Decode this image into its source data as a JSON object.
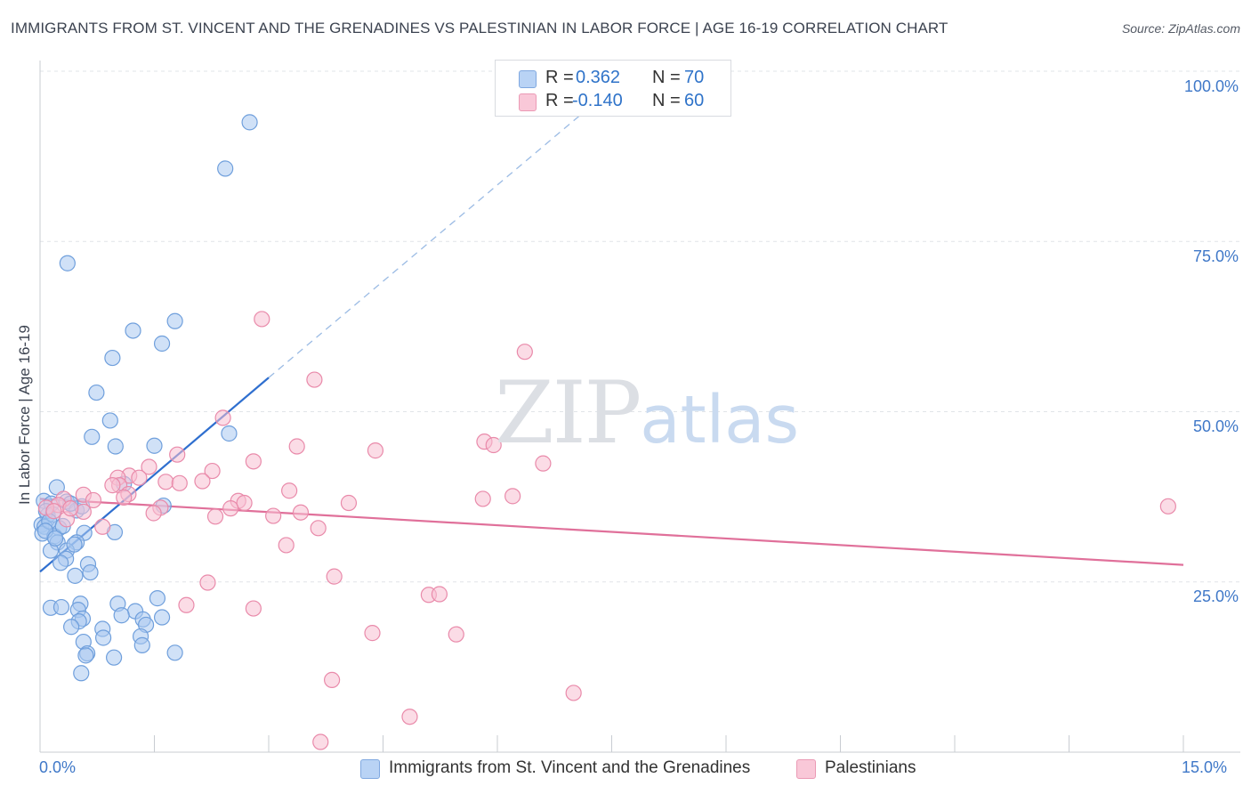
{
  "header": {
    "title": "IMMIGRANTS FROM ST. VINCENT AND THE GRENADINES VS PALESTINIAN IN LABOR FORCE | AGE 16-19 CORRELATION CHART",
    "source": "Source: ZipAtlas.com"
  },
  "watermark": {
    "zip": "ZIP",
    "atlas": "atlas"
  },
  "legend": {
    "r_label": "R =",
    "n_label": "N =",
    "rows": [
      {
        "r": "0.362",
        "n": "70",
        "swatch": "#b9d3f5"
      },
      {
        "r": "-0.140",
        "n": "60",
        "swatch": "#f9c8d8"
      }
    ]
  },
  "bottom_legend": [
    {
      "label": "Immigrants from St. Vincent and the Grenadines",
      "swatch": "#b9d3f5"
    },
    {
      "label": "Palestinians",
      "swatch": "#f9c8d8"
    }
  ],
  "colors": {
    "blue_point_fill": "#aac9f0",
    "blue_point_stroke": "#6f9fdc",
    "blue_line": "#2f6fcf",
    "pink_point_fill": "#f7bfd1",
    "pink_point_stroke": "#e98aaa",
    "pink_line": "#e0709a",
    "grid": "#e1e4e8",
    "axis": "#c8ccd2"
  },
  "chart_data": {
    "type": "scatter",
    "title": "IMMIGRANTS FROM ST. VINCENT AND THE GRENADINES VS PALESTINIAN IN LABOR FORCE | AGE 16-19 CORRELATION CHART",
    "xlabel": "",
    "ylabel": "In Labor Force | Age 16-19",
    "xlim": [
      0,
      15
    ],
    "ylim": [
      0,
      100
    ],
    "x_tick_labels": [
      "0.0%",
      "15.0%"
    ],
    "y_ticks": [
      25,
      50,
      75,
      100
    ],
    "y_tick_labels": [
      "25.0%",
      "50.0%",
      "75.0%",
      "100.0%"
    ],
    "grid": true,
    "legend_position": "top-center",
    "series": [
      {
        "name": "Immigrants from St. Vincent and the Grenadines",
        "r": 0.362,
        "n": 70,
        "trend": {
          "x": [
            0,
            3.0
          ],
          "y": [
            26.5,
            55.0
          ],
          "dashed_to": [
            7.4,
            96.5
          ]
        },
        "points": [
          [
            2.75,
            92.5
          ],
          [
            2.43,
            85.7
          ],
          [
            0.36,
            71.8
          ],
          [
            1.77,
            63.3
          ],
          [
            1.22,
            61.9
          ],
          [
            1.6,
            60.0
          ],
          [
            0.95,
            57.9
          ],
          [
            0.74,
            52.8
          ],
          [
            0.92,
            48.7
          ],
          [
            0.68,
            46.3
          ],
          [
            2.48,
            46.8
          ],
          [
            0.99,
            44.9
          ],
          [
            1.5,
            45.0
          ],
          [
            0.22,
            38.9
          ],
          [
            1.1,
            39.4
          ],
          [
            0.05,
            36.9
          ],
          [
            0.15,
            36.5
          ],
          [
            0.35,
            36.8
          ],
          [
            0.48,
            35.5
          ],
          [
            0.55,
            36.1
          ],
          [
            0.1,
            34.8
          ],
          [
            0.02,
            33.4
          ],
          [
            0.06,
            33.1
          ],
          [
            0.25,
            32.9
          ],
          [
            0.03,
            32.1
          ],
          [
            0.19,
            31.7
          ],
          [
            0.58,
            32.2
          ],
          [
            0.98,
            32.3
          ],
          [
            0.23,
            30.8
          ],
          [
            0.48,
            30.8
          ],
          [
            0.14,
            29.6
          ],
          [
            0.35,
            29.6
          ],
          [
            0.34,
            28.4
          ],
          [
            0.27,
            27.8
          ],
          [
            0.63,
            27.6
          ],
          [
            0.66,
            26.4
          ],
          [
            0.46,
            25.9
          ],
          [
            0.53,
            21.8
          ],
          [
            1.02,
            21.8
          ],
          [
            1.54,
            22.6
          ],
          [
            0.14,
            21.2
          ],
          [
            0.28,
            21.3
          ],
          [
            0.5,
            20.9
          ],
          [
            1.25,
            20.7
          ],
          [
            1.07,
            20.1
          ],
          [
            1.6,
            19.8
          ],
          [
            0.56,
            19.6
          ],
          [
            0.51,
            19.2
          ],
          [
            1.35,
            19.5
          ],
          [
            1.39,
            18.7
          ],
          [
            0.41,
            18.4
          ],
          [
            0.82,
            18.1
          ],
          [
            1.32,
            17.0
          ],
          [
            0.83,
            16.8
          ],
          [
            0.57,
            16.2
          ],
          [
            1.34,
            15.7
          ],
          [
            0.62,
            14.5
          ],
          [
            0.6,
            14.2
          ],
          [
            0.97,
            13.9
          ],
          [
            1.77,
            14.6
          ],
          [
            0.54,
            11.6
          ],
          [
            1.62,
            36.2
          ],
          [
            0.08,
            35.4
          ],
          [
            0.17,
            34.9
          ],
          [
            0.4,
            36.5
          ],
          [
            0.12,
            33.9
          ],
          [
            0.3,
            33.2
          ],
          [
            0.07,
            32.5
          ],
          [
            0.2,
            31.4
          ],
          [
            0.45,
            30.5
          ]
        ]
      },
      {
        "name": "Palestinians",
        "r": -0.14,
        "n": 60,
        "trend": {
          "x": [
            0,
            15.0
          ],
          "y": [
            37.2,
            27.5
          ]
        },
        "points": [
          [
            2.91,
            63.6
          ],
          [
            6.36,
            58.8
          ],
          [
            3.6,
            54.7
          ],
          [
            2.4,
            49.1
          ],
          [
            5.83,
            45.6
          ],
          [
            5.95,
            45.1
          ],
          [
            3.37,
            44.9
          ],
          [
            4.4,
            44.3
          ],
          [
            1.8,
            43.7
          ],
          [
            2.8,
            42.7
          ],
          [
            6.6,
            42.4
          ],
          [
            1.43,
            41.9
          ],
          [
            2.26,
            41.3
          ],
          [
            1.17,
            40.6
          ],
          [
            1.02,
            40.3
          ],
          [
            1.3,
            40.3
          ],
          [
            1.65,
            39.7
          ],
          [
            1.83,
            39.5
          ],
          [
            2.13,
            39.8
          ],
          [
            1.04,
            39.2
          ],
          [
            0.95,
            39.2
          ],
          [
            3.27,
            38.4
          ],
          [
            1.16,
            37.9
          ],
          [
            0.57,
            37.8
          ],
          [
            0.31,
            37.2
          ],
          [
            5.81,
            37.2
          ],
          [
            6.2,
            37.6
          ],
          [
            2.6,
            36.9
          ],
          [
            2.68,
            36.6
          ],
          [
            4.05,
            36.6
          ],
          [
            0.24,
            36.3
          ],
          [
            0.08,
            35.9
          ],
          [
            1.58,
            35.9
          ],
          [
            2.5,
            35.8
          ],
          [
            0.18,
            35.4
          ],
          [
            0.57,
            35.3
          ],
          [
            1.49,
            35.1
          ],
          [
            3.06,
            34.7
          ],
          [
            2.3,
            34.6
          ],
          [
            3.42,
            35.2
          ],
          [
            0.35,
            34.2
          ],
          [
            0.82,
            33.1
          ],
          [
            3.65,
            32.9
          ],
          [
            14.8,
            36.1
          ],
          [
            3.23,
            30.4
          ],
          [
            3.86,
            25.8
          ],
          [
            2.2,
            24.9
          ],
          [
            5.1,
            23.1
          ],
          [
            5.24,
            23.2
          ],
          [
            1.92,
            21.6
          ],
          [
            2.8,
            21.1
          ],
          [
            4.36,
            17.5
          ],
          [
            5.46,
            17.3
          ],
          [
            3.83,
            10.6
          ],
          [
            7.0,
            8.7
          ],
          [
            4.85,
            5.2
          ],
          [
            3.68,
            1.5
          ],
          [
            0.7,
            37.0
          ],
          [
            0.4,
            35.8
          ],
          [
            1.1,
            37.4
          ]
        ]
      }
    ]
  }
}
